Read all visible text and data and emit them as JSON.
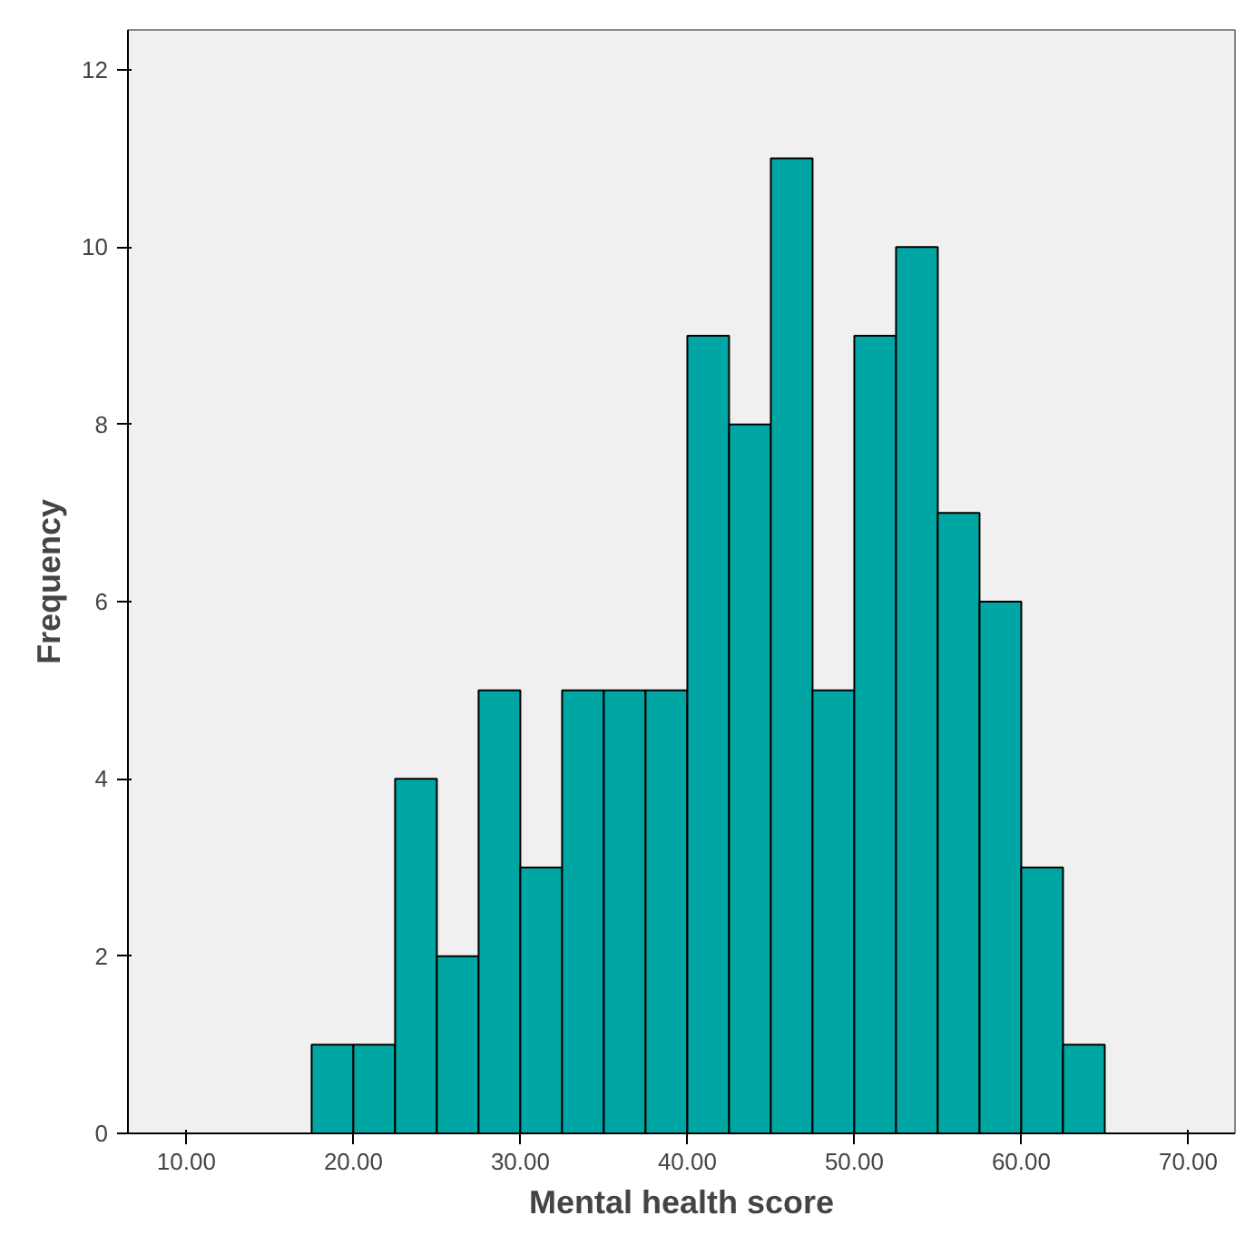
{
  "chart_data": {
    "type": "histogram",
    "xlabel": "Mental health score",
    "ylabel": "Frequency",
    "bins": [
      17.5,
      20,
      22.5,
      25,
      27.5,
      30,
      32.5,
      35,
      37.5,
      40,
      42.5,
      45,
      47.5,
      50,
      52.5,
      55,
      57.5,
      60,
      62.5,
      65
    ],
    "values": [
      1,
      1,
      4,
      2,
      5,
      3,
      5,
      5,
      5,
      9,
      8,
      11,
      5,
      9,
      10,
      7,
      6,
      3,
      1
    ],
    "color": "#00a6a3",
    "xlim": [
      6.5,
      72.8
    ],
    "ylim": [
      0,
      12.45
    ],
    "xticks": [
      {
        "value": 10,
        "label": "10.00"
      },
      {
        "value": 20,
        "label": "20.00"
      },
      {
        "value": 30,
        "label": "30.00"
      },
      {
        "value": 40,
        "label": "40.00"
      },
      {
        "value": 50,
        "label": "50.00"
      },
      {
        "value": 60,
        "label": "60.00"
      },
      {
        "value": 70,
        "label": "70.00"
      }
    ],
    "yticks": [
      0,
      2,
      4,
      6,
      8,
      10,
      12
    ],
    "grid": false
  }
}
